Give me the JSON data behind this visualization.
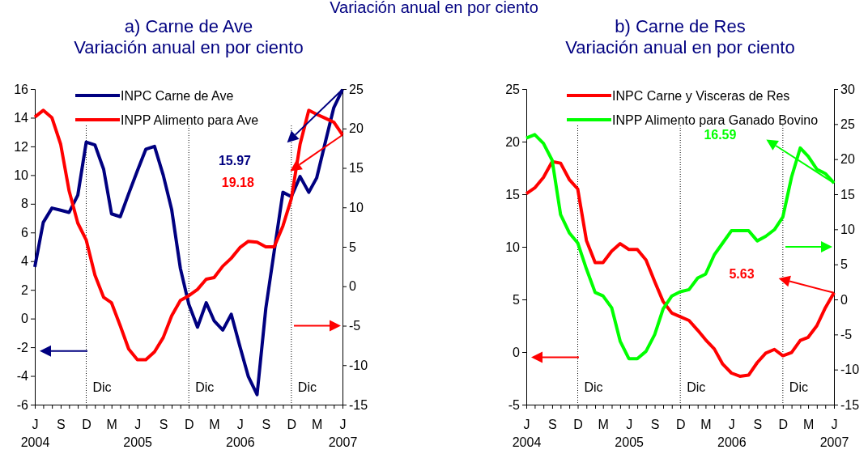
{
  "chart_data": [
    {
      "type": "line",
      "title": "a) Carne de Ave",
      "subtitle": "Variación anual en por ciento",
      "x": [
        "2004-06",
        "2004-07",
        "2004-08",
        "2004-09",
        "2004-10",
        "2004-11",
        "2004-12",
        "2005-01",
        "2005-02",
        "2005-03",
        "2005-04",
        "2005-05",
        "2005-06",
        "2005-07",
        "2005-08",
        "2005-09",
        "2005-10",
        "2005-11",
        "2005-12",
        "2006-01",
        "2006-02",
        "2006-03",
        "2006-04",
        "2006-05",
        "2006-06",
        "2006-07",
        "2006-08",
        "2006-09",
        "2006-10",
        "2006-11",
        "2006-12",
        "2007-01",
        "2007-02",
        "2007-03",
        "2007-04",
        "2007-05",
        "2007-06"
      ],
      "series": [
        {
          "name": "INPC Carne de Ave",
          "color": "#000080",
          "values": [
            3.6,
            6.7,
            7.7,
            7.55,
            7.4,
            8.6,
            12.3,
            12.1,
            10.4,
            7.3,
            7.1,
            8.7,
            10.3,
            11.8,
            12.0,
            10.0,
            7.6,
            3.5,
            1.0,
            -0.6,
            1.1,
            -0.15,
            -0.8,
            0.3,
            -1.95,
            -4.05,
            -5.3,
            0.7,
            4.7,
            8.8,
            8.5,
            9.9,
            8.8,
            9.8,
            12.3,
            14.7,
            15.97
          ]
        },
        {
          "name": "INPP Alimento para Ave",
          "color": "#ff0000",
          "axis": "y2",
          "values": [
            21.45,
            22.3,
            21.35,
            18.0,
            12.1,
            8.0,
            5.85,
            1.4,
            -1.4,
            -2.1,
            -5.0,
            -7.95,
            -9.3,
            -9.3,
            -8.3,
            -6.5,
            -3.75,
            -1.8,
            -1.2,
            -0.4,
            0.9,
            1.1,
            2.55,
            3.55,
            4.9,
            5.7,
            5.6,
            5.0,
            5.0,
            7.65,
            11.1,
            18.0,
            22.3,
            21.8,
            21.3,
            20.8,
            19.18
          ]
        }
      ],
      "xlim": [
        "2004-06",
        "2007-06"
      ],
      "xticks": [
        {
          "value": "2004-06",
          "label": "J\n2004"
        },
        {
          "value": "2004-07",
          "label": null
        },
        {
          "value": "2004-08",
          "label": null
        },
        {
          "value": "2004-09",
          "label": "S"
        },
        {
          "value": "2004-10",
          "label": null
        },
        {
          "value": "2004-11",
          "label": null
        },
        {
          "value": "2004-12",
          "label": "D"
        },
        {
          "value": "2005-01",
          "label": null
        },
        {
          "value": "2005-02",
          "label": null
        },
        {
          "value": "2005-03",
          "label": "M"
        },
        {
          "value": "2005-04",
          "label": null
        },
        {
          "value": "2005-05",
          "label": null
        },
        {
          "value": "2005-06",
          "label": "J\n2005"
        },
        {
          "value": "2005-07",
          "label": null
        },
        {
          "value": "2005-08",
          "label": null
        },
        {
          "value": "2005-09",
          "label": "S"
        },
        {
          "value": "2005-10",
          "label": null
        },
        {
          "value": "2005-11",
          "label": null
        },
        {
          "value": "2005-12",
          "label": "D"
        },
        {
          "value": "2006-01",
          "label": null
        },
        {
          "value": "2006-02",
          "label": null
        },
        {
          "value": "2006-03",
          "label": "M"
        },
        {
          "value": "2006-04",
          "label": null
        },
        {
          "value": "2006-05",
          "label": null
        },
        {
          "value": "2006-06",
          "label": "J\n2006"
        },
        {
          "value": "2006-07",
          "label": null
        },
        {
          "value": "2006-08",
          "label": null
        },
        {
          "value": "2006-09",
          "label": "S"
        },
        {
          "value": "2006-10",
          "label": null
        },
        {
          "value": "2006-11",
          "label": null
        },
        {
          "value": "2006-12",
          "label": "D"
        },
        {
          "value": "2007-01",
          "label": null
        },
        {
          "value": "2007-02",
          "label": null
        },
        {
          "value": "2007-03",
          "label": "M"
        },
        {
          "value": "2007-04",
          "label": null
        },
        {
          "value": "2007-05",
          "label": null
        },
        {
          "value": "2007-06",
          "label": "J\n2007"
        }
      ],
      "ylim": [
        -6,
        16
      ],
      "yticks": [
        -6,
        -4,
        -2,
        0,
        2,
        4,
        6,
        8,
        10,
        12,
        14,
        16
      ],
      "y2lim": [
        -15,
        25
      ],
      "y2ticks": [
        -15,
        -10,
        -5,
        0,
        5,
        10,
        15,
        20,
        25
      ],
      "ref_lines": [
        {
          "axis": "x",
          "value": "2004-12",
          "label": "Dic",
          "line_style": "dotted"
        },
        {
          "axis": "x",
          "value": "2005-12",
          "label": "Dic",
          "line_style": "dotted"
        },
        {
          "axis": "x",
          "value": "2006-12",
          "label": "Dic",
          "line_style": "dotted"
        }
      ],
      "annotations": [
        "Variación anual en por ciento",
        "15.97",
        "19.18"
      ],
      "legend": "top left",
      "grid": false,
      "marker": "none",
      "line_style": "solid"
    },
    {
      "type": "line",
      "title": "b) Carne de Res",
      "subtitle": "Variación anual en por ciento",
      "x": [
        "2004-06",
        "2004-07",
        "2004-08",
        "2004-09",
        "2004-10",
        "2004-11",
        "2004-12",
        "2005-01",
        "2005-02",
        "2005-03",
        "2005-04",
        "2005-05",
        "2005-06",
        "2005-07",
        "2005-08",
        "2005-09",
        "2005-10",
        "2005-11",
        "2005-12",
        "2006-01",
        "2006-02",
        "2006-03",
        "2006-04",
        "2006-05",
        "2006-06",
        "2006-07",
        "2006-08",
        "2006-09",
        "2006-10",
        "2006-11",
        "2006-12",
        "2007-01",
        "2007-02",
        "2007-03",
        "2007-04",
        "2007-05",
        "2007-06"
      ],
      "series": [
        {
          "name": "INPC Carne y Visceras de Res",
          "color": "#ff0000",
          "values": [
            15.05,
            15.6,
            16.6,
            18.1,
            17.95,
            16.4,
            15.5,
            10.6,
            8.5,
            8.5,
            9.6,
            10.3,
            9.75,
            9.75,
            8.75,
            6.7,
            4.8,
            3.7,
            3.35,
            3.0,
            2.07,
            1.17,
            0.3,
            -1.15,
            -2.0,
            -2.3,
            -2.2,
            -1.0,
            -0.1,
            0.25,
            -0.35,
            -0.05,
            1.1,
            1.4,
            2.5,
            4.2,
            5.63
          ]
        },
        {
          "name": "INPP Alimento para Ganado Bovino",
          "color": "#00ff00",
          "axis": "y2",
          "values": [
            23.0,
            23.5,
            22.25,
            19.85,
            12.1,
            9.5,
            8.05,
            4.35,
            1.0,
            0.5,
            -1.2,
            -5.95,
            -8.45,
            -8.45,
            -7.4,
            -5.0,
            -1.35,
            0.5,
            1.1,
            1.4,
            3.05,
            3.6,
            6.35,
            8.05,
            9.8,
            9.8,
            9.8,
            8.35,
            9.0,
            9.95,
            11.75,
            17.45,
            21.6,
            20.4,
            18.55,
            17.95,
            16.59
          ]
        }
      ],
      "xlim": [
        "2004-06",
        "2007-06"
      ],
      "xticks": [
        {
          "value": "2004-06",
          "label": "J\n2004"
        },
        {
          "value": "2004-07",
          "label": null
        },
        {
          "value": "2004-08",
          "label": null
        },
        {
          "value": "2004-09",
          "label": "S"
        },
        {
          "value": "2004-10",
          "label": null
        },
        {
          "value": "2004-11",
          "label": null
        },
        {
          "value": "2004-12",
          "label": "D"
        },
        {
          "value": "2005-01",
          "label": null
        },
        {
          "value": "2005-02",
          "label": null
        },
        {
          "value": "2005-03",
          "label": "M"
        },
        {
          "value": "2005-04",
          "label": null
        },
        {
          "value": "2005-05",
          "label": null
        },
        {
          "value": "2005-06",
          "label": "J\n2005"
        },
        {
          "value": "2005-07",
          "label": null
        },
        {
          "value": "2005-08",
          "label": null
        },
        {
          "value": "2005-09",
          "label": "S"
        },
        {
          "value": "2005-10",
          "label": null
        },
        {
          "value": "2005-11",
          "label": null
        },
        {
          "value": "2005-12",
          "label": "D"
        },
        {
          "value": "2006-01",
          "label": null
        },
        {
          "value": "2006-02",
          "label": null
        },
        {
          "value": "2006-03",
          "label": "M"
        },
        {
          "value": "2006-04",
          "label": null
        },
        {
          "value": "2006-05",
          "label": null
        },
        {
          "value": "2006-06",
          "label": "J\n2006"
        },
        {
          "value": "2006-07",
          "label": null
        },
        {
          "value": "2006-08",
          "label": null
        },
        {
          "value": "2006-09",
          "label": "S"
        },
        {
          "value": "2006-10",
          "label": null
        },
        {
          "value": "2006-11",
          "label": null
        },
        {
          "value": "2006-12",
          "label": "D"
        },
        {
          "value": "2007-01",
          "label": null
        },
        {
          "value": "2007-02",
          "label": null
        },
        {
          "value": "2007-03",
          "label": "M"
        },
        {
          "value": "2007-04",
          "label": null
        },
        {
          "value": "2007-05",
          "label": null
        },
        {
          "value": "2007-06",
          "label": "J\n2007"
        }
      ],
      "ylim": [
        -5,
        25
      ],
      "yticks": [
        -5,
        0,
        5,
        10,
        15,
        20,
        25
      ],
      "y2lim": [
        -15,
        30
      ],
      "y2ticks": [
        -15,
        -10,
        -5,
        0,
        5,
        10,
        15,
        20,
        25,
        30
      ],
      "ref_lines": [
        {
          "axis": "x",
          "value": "2004-12",
          "label": "Dic",
          "line_style": "dotted"
        },
        {
          "axis": "x",
          "value": "2005-12",
          "label": "Dic",
          "line_style": "dotted"
        },
        {
          "axis": "x",
          "value": "2006-12",
          "label": "Dic",
          "line_style": "dotted"
        }
      ],
      "annotations": [
        "5.63",
        "16.59"
      ],
      "legend": "top left",
      "grid": false,
      "marker": "none",
      "line_style": "solid"
    }
  ]
}
